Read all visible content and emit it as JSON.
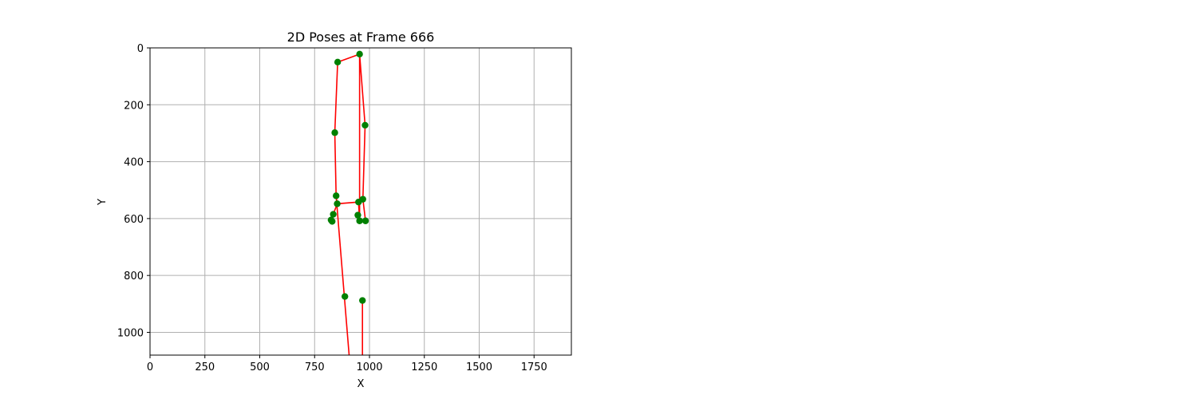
{
  "chart_data": {
    "type": "scatter",
    "title": "2D Poses at Frame 666",
    "xlabel": "X",
    "ylabel": "Y",
    "xlim": [
      0,
      1920
    ],
    "ylim": [
      1080,
      0
    ],
    "y_inverted": true,
    "grid": true,
    "x_ticks": [
      0,
      250,
      500,
      750,
      1000,
      1250,
      1500,
      1750
    ],
    "y_ticks": [
      0,
      200,
      400,
      600,
      800,
      1000
    ],
    "point_color": "#008000",
    "line_color": "#ff0000",
    "points": [
      {
        "x": 955,
        "y": 22
      },
      {
        "x": 855,
        "y": 50
      },
      {
        "x": 980,
        "y": 272
      },
      {
        "x": 842,
        "y": 298
      },
      {
        "x": 848,
        "y": 520
      },
      {
        "x": 970,
        "y": 532
      },
      {
        "x": 950,
        "y": 542
      },
      {
        "x": 853,
        "y": 548
      },
      {
        "x": 835,
        "y": 585
      },
      {
        "x": 947,
        "y": 588
      },
      {
        "x": 825,
        "y": 605
      },
      {
        "x": 830,
        "y": 610
      },
      {
        "x": 955,
        "y": 608
      },
      {
        "x": 982,
        "y": 608
      },
      {
        "x": 888,
        "y": 874
      },
      {
        "x": 968,
        "y": 888
      }
    ],
    "lines": [
      [
        [
          855,
          50
        ],
        [
          955,
          22
        ],
        [
          980,
          272
        ],
        [
          970,
          532
        ],
        [
          950,
          542
        ],
        [
          853,
          548
        ],
        [
          848,
          520
        ],
        [
          842,
          298
        ],
        [
          855,
          50
        ]
      ],
      [
        [
          955,
          22
        ],
        [
          955,
          608
        ]
      ],
      [
        [
          970,
          532
        ],
        [
          982,
          608
        ]
      ],
      [
        [
          950,
          542
        ],
        [
          955,
          608
        ]
      ],
      [
        [
          853,
          548
        ],
        [
          835,
          585
        ],
        [
          825,
          605
        ]
      ],
      [
        [
          848,
          520
        ],
        [
          920,
          1200
        ]
      ],
      [
        [
          968,
          888
        ],
        [
          968,
          1200
        ]
      ]
    ]
  }
}
